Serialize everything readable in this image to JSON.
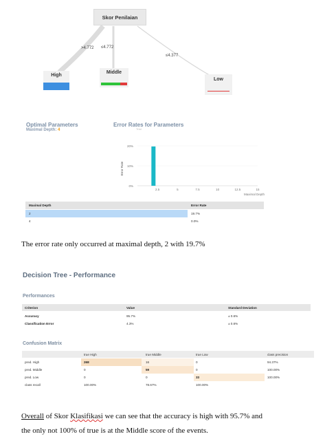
{
  "tree": {
    "root_label": "Skor Penilaian",
    "edges": [
      ">4.772",
      "≤4.772",
      "≤4.377"
    ],
    "leaves": [
      {
        "label": "High",
        "color": "#3d8fe0"
      },
      {
        "label": "Middle",
        "color_main": "#2fc33a",
        "color_minor": "#e23b3b"
      },
      {
        "label": "Low",
        "color": "#e23b3b"
      }
    ]
  },
  "optimal": {
    "title": "Optimal Parameters",
    "depth_label": "Maximal Depth:",
    "depth_value": "4",
    "accent": "#f39c12"
  },
  "error_chart": {
    "title": "Error Rates for Parameters",
    "subtitle": "Trial",
    "ylabel": "Error Rate",
    "xlabel": "Maximal Depth",
    "bar_color": "#1ab8c7"
  },
  "chart_data": {
    "type": "bar",
    "x": [
      2
    ],
    "values": [
      19.7
    ],
    "xlim": [
      0,
      15
    ],
    "ylim": [
      0,
      20
    ],
    "yticks": [
      "20%",
      "10%",
      "0%"
    ],
    "xticks": [
      "2.5",
      "5",
      "7.5",
      "10",
      "12.5",
      "15"
    ],
    "xlabel": "Maximal Depth",
    "ylabel": "Error Rate",
    "title": "Error Rates for Parameters"
  },
  "depth_table": {
    "headers": [
      "Maximal Depth",
      "Error Rate"
    ],
    "rows": [
      {
        "depth": "2",
        "error": "19.7%",
        "selected": true
      },
      {
        "depth": "4",
        "error": "0.0%",
        "selected": false
      }
    ]
  },
  "text1": "The error rate only occurred at maximal depth, 2 with 19.7%",
  "perf": {
    "title": "Decision Tree - Performance",
    "section": "Performances",
    "headers": [
      "Criterion",
      "Value",
      "Standard Deviation"
    ],
    "rows": [
      {
        "criterion": "Accuracy",
        "value": "95.7%",
        "sd": "± 0.6%"
      },
      {
        "criterion": "Classification Error",
        "value": "4.3%",
        "sd": "± 0.6%"
      }
    ]
  },
  "confusion": {
    "title": "Confusion Matrix",
    "headers": [
      "",
      "true High",
      "true Middle",
      "true Low",
      "class precision"
    ],
    "rows": [
      {
        "label": "pred. High",
        "cells": [
          "268",
          "16",
          "0"
        ],
        "precision": "94.37%"
      },
      {
        "label": "pred. Middle",
        "cells": [
          "0",
          "59",
          "0"
        ],
        "precision": "100.00%"
      },
      {
        "label": "pred. Low",
        "cells": [
          "0",
          "0",
          "33"
        ],
        "precision": "100.00%"
      }
    ],
    "recall_label": "class recall",
    "recall": [
      "100.00%",
      "78.67%",
      "100.00%"
    ]
  },
  "text2": {
    "w1": "Overall",
    "w2": "of Skor",
    "w3": "Klasifikasi",
    "rest": " we can see that the accuracy is high with 95.7% and",
    "line2": "the only not 100% of true is at the Middle score of the events."
  }
}
